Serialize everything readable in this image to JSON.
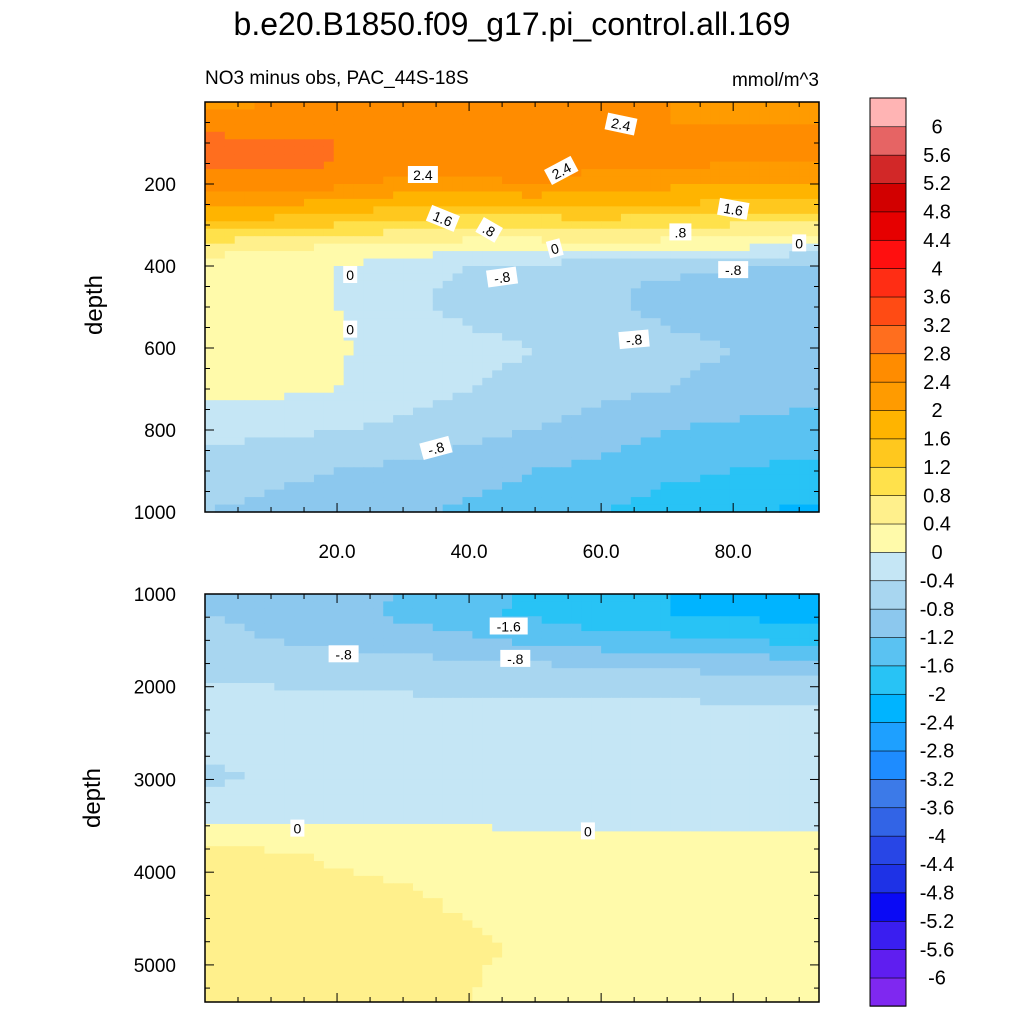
{
  "chart_data": {
    "type": "heatmap",
    "title": "b.e20.B1850.f09_g17.pi_control.all.169",
    "subtitle_left": "NO3 minus obs, PAC_44S-18S",
    "units": "mmol/m^3",
    "x": [
      0,
      10,
      20,
      30,
      40,
      50,
      60,
      70,
      80,
      90
    ],
    "panels": [
      {
        "name": "upper",
        "ylabel": "depth",
        "ylim": [
          0,
          1000
        ],
        "xlim": [
          0,
          93
        ],
        "xticks": [
          20,
          40,
          60,
          80
        ],
        "xtick_labels": [
          "20.0",
          "40.0",
          "60.0",
          "80.0"
        ],
        "yticks": [
          200,
          400,
          600,
          800,
          1000
        ],
        "ytick_labels": [
          "200",
          "400",
          "600",
          "800",
          "1000"
        ],
        "depths": [
          0,
          50,
          100,
          150,
          200,
          250,
          300,
          350,
          400,
          450,
          500,
          600,
          700,
          800,
          900,
          1000
        ],
        "values": [
          [
            2.3,
            2.4,
            2.4,
            2.4,
            2.4,
            2.4,
            2.4,
            2.4,
            2.3,
            2.3
          ],
          [
            2.5,
            2.5,
            2.6,
            2.5,
            2.5,
            2.6,
            2.5,
            2.4,
            2.4,
            2.4
          ],
          [
            3.0,
            2.9,
            2.8,
            2.7,
            2.6,
            2.7,
            2.6,
            2.6,
            2.8,
            2.6
          ],
          [
            2.9,
            2.9,
            2.8,
            2.6,
            2.6,
            2.6,
            2.5,
            2.5,
            2.4,
            2.4
          ],
          [
            2.6,
            2.6,
            2.5,
            2.3,
            2.3,
            2.4,
            2.2,
            2.1,
            2.0,
            2.0
          ],
          [
            2.1,
            2.0,
            1.9,
            1.7,
            1.6,
            1.7,
            1.6,
            1.6,
            1.5,
            1.4
          ],
          [
            1.5,
            1.4,
            1.2,
            1.0,
            0.9,
            0.9,
            1.0,
            0.9,
            0.8,
            0.7
          ],
          [
            0.6,
            0.5,
            0.4,
            0.3,
            0.2,
            0.2,
            0.3,
            0.2,
            0.1,
            0.0
          ],
          [
            0.2,
            0.2,
            0.0,
            -0.2,
            -0.4,
            -0.5,
            -0.6,
            -0.6,
            -0.8,
            -0.9
          ],
          [
            0.1,
            0.1,
            0.0,
            -0.3,
            -0.5,
            -0.6,
            -0.7,
            -0.9,
            -1.0,
            -1.1
          ],
          [
            0.1,
            0.05,
            0.0,
            -0.3,
            -0.5,
            -0.6,
            -0.7,
            -0.9,
            -1.0,
            -1.1
          ],
          [
            0.2,
            0.1,
            0.05,
            -0.2,
            -0.3,
            -0.4,
            -0.6,
            -0.7,
            -0.8,
            -0.9
          ],
          [
            0.1,
            0.1,
            0.0,
            -0.2,
            -0.4,
            -0.5,
            -0.7,
            -0.8,
            -0.9,
            -1.0
          ],
          [
            -0.3,
            -0.3,
            -0.4,
            -0.5,
            -0.7,
            -0.8,
            -1.0,
            -1.2,
            -1.3,
            -1.4
          ],
          [
            -0.6,
            -0.7,
            -0.8,
            -0.9,
            -1.0,
            -1.2,
            -1.3,
            -1.5,
            -1.6,
            -1.7
          ],
          [
            -0.8,
            -0.9,
            -1.0,
            -1.1,
            -1.3,
            -1.4,
            -1.6,
            -1.8,
            -1.9,
            -2.1
          ]
        ],
        "contour_labels": [
          {
            "text": "2.4",
            "x": 63,
            "depth": 55,
            "angle": 12
          },
          {
            "text": "2.4",
            "x": 33,
            "depth": 178,
            "angle": 0
          },
          {
            "text": "2.4",
            "x": 54,
            "depth": 168,
            "angle": -28
          },
          {
            "text": "1.6",
            "x": 36,
            "depth": 285,
            "angle": 22
          },
          {
            "text": ".8",
            "x": 43,
            "depth": 313,
            "angle": 30
          },
          {
            "text": "1.6",
            "x": 80,
            "depth": 262,
            "angle": 10
          },
          {
            "text": ".8",
            "x": 72,
            "depth": 318,
            "angle": 0
          },
          {
            "text": "0",
            "x": 53,
            "depth": 358,
            "angle": -15
          },
          {
            "text": "0",
            "x": 90,
            "depth": 345,
            "angle": 0
          },
          {
            "text": "0",
            "x": 22,
            "depth": 422,
            "angle": 0
          },
          {
            "text": "-.8",
            "x": 45,
            "depth": 428,
            "angle": -8
          },
          {
            "text": "-.8",
            "x": 80,
            "depth": 410,
            "angle": 0
          },
          {
            "text": "0",
            "x": 22,
            "depth": 555,
            "angle": 0
          },
          {
            "text": "-.8",
            "x": 65,
            "depth": 580,
            "angle": -5
          },
          {
            "text": "-.8",
            "x": 35,
            "depth": 845,
            "angle": -15
          }
        ]
      },
      {
        "name": "lower",
        "ylabel": "depth",
        "ylim": [
          1000,
          5400
        ],
        "xlim": [
          0,
          93
        ],
        "xticks": [
          20,
          40,
          60,
          80
        ],
        "yticks": [
          1000,
          2000,
          3000,
          4000,
          5000
        ],
        "ytick_labels": [
          "1000",
          "2000",
          "3000",
          "4000",
          "5000"
        ],
        "depths": [
          1000,
          1200,
          1500,
          1800,
          2200,
          2600,
          3000,
          3400,
          3800,
          4300,
          4800,
          5000,
          5400
        ],
        "values": [
          [
            -0.8,
            -0.9,
            -1.0,
            -1.2,
            -1.4,
            -1.7,
            -1.9,
            -2.0,
            -2.2,
            -2.4
          ],
          [
            -0.8,
            -0.9,
            -1.0,
            -1.3,
            -1.5,
            -1.7,
            -1.9,
            -2.0,
            -2.1,
            -2.2
          ],
          [
            -0.7,
            -0.8,
            -0.9,
            -1.0,
            -1.1,
            -1.3,
            -1.4,
            -1.5,
            -1.6,
            -1.7
          ],
          [
            -0.5,
            -0.5,
            -0.6,
            -0.6,
            -0.7,
            -0.7,
            -0.8,
            -0.8,
            -0.9,
            -0.9
          ],
          [
            -0.3,
            -0.3,
            -0.3,
            -0.3,
            -0.35,
            -0.35,
            -0.35,
            -0.35,
            -0.35,
            -0.35
          ],
          [
            -0.35,
            -0.3,
            -0.25,
            -0.25,
            -0.25,
            -0.25,
            -0.25,
            -0.25,
            -0.25,
            -0.25
          ],
          [
            -0.45,
            -0.38,
            -0.25,
            -0.2,
            -0.2,
            -0.2,
            -0.2,
            -0.2,
            -0.2,
            -0.2
          ],
          [
            -0.1,
            -0.1,
            -0.1,
            -0.1,
            -0.1,
            -0.1,
            -0.1,
            -0.1,
            -0.1,
            -0.1
          ],
          [
            0.5,
            0.45,
            0.35,
            0.3,
            0.25,
            0.2,
            0.2,
            0.2,
            0.2,
            0.2
          ],
          [
            0.6,
            0.55,
            0.5,
            0.45,
            0.35,
            0.3,
            0.3,
            0.3,
            0.3,
            0.3
          ],
          [
            0.6,
            0.6,
            0.55,
            0.5,
            0.45,
            0.35,
            0.3,
            0.3,
            0.3,
            0.3
          ],
          [
            0.6,
            0.6,
            0.55,
            0.5,
            0.42,
            0.35,
            0.3,
            0.3,
            0.3,
            0.3
          ],
          [
            0.6,
            0.6,
            0.55,
            0.5,
            0.4,
            0.35,
            0.3,
            0.3,
            0.3,
            0.3
          ]
        ],
        "contour_labels": [
          {
            "text": "-1.6",
            "x": 46,
            "depth": 1350,
            "angle": 0
          },
          {
            "text": "-.8",
            "x": 21,
            "depth": 1650,
            "angle": 0
          },
          {
            "text": "-.8",
            "x": 47,
            "depth": 1700,
            "angle": 0
          },
          {
            "text": "0",
            "x": 14,
            "depth": 3530,
            "angle": 0
          },
          {
            "text": "0",
            "x": 58,
            "depth": 3560,
            "angle": 0
          }
        ]
      }
    ],
    "colorbar": {
      "levels": [
        "-6",
        "-5.6",
        "-5.2",
        "-4.8",
        "-4.4",
        "-4",
        "-3.6",
        "-3.2",
        "-2.8",
        "-2.4",
        "-2",
        "-1.6",
        "-1.2",
        "-0.8",
        "-0.4",
        "0",
        "0.4",
        "0.8",
        "1.2",
        "1.6",
        "2",
        "2.4",
        "2.8",
        "3.2",
        "3.6",
        "4",
        "4.4",
        "4.8",
        "5.2",
        "5.6",
        "6"
      ],
      "colors": [
        "#7f28f0",
        "#5f1ef0",
        "#3a1ef0",
        "#0a0af5",
        "#1e32e6",
        "#2846e6",
        "#3264e6",
        "#3c7ae8",
        "#1e8cff",
        "#1ea0ff",
        "#00b4ff",
        "#28c3f5",
        "#5ac2f2",
        "#8cc8ee",
        "#a8d6f0",
        "#c5e6f5",
        "#fffaaa",
        "#fff08c",
        "#ffe14b",
        "#ffc81e",
        "#ffb400",
        "#ff9b00",
        "#ff8c00",
        "#ff6e1e",
        "#ff4b14",
        "#ff2d14",
        "#ff0f0f",
        "#e60000",
        "#d20000",
        "#d22828",
        "#e66464",
        "#ffb4b4"
      ]
    }
  }
}
